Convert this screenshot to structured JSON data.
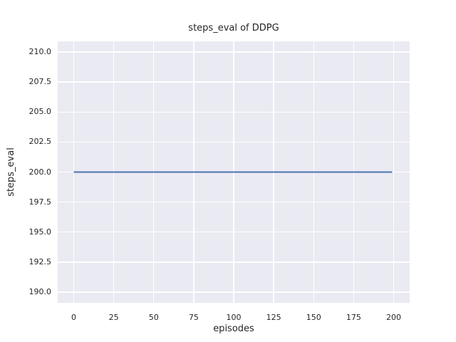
{
  "chart_data": {
    "type": "line",
    "title": "steps_eval of DDPG",
    "xlabel": "episodes",
    "ylabel": "steps_eval",
    "x_ticks": [
      0,
      25,
      50,
      75,
      100,
      125,
      150,
      175,
      200
    ],
    "x_tick_labels": [
      "0",
      "25",
      "50",
      "75",
      "100",
      "125",
      "150",
      "175",
      "200"
    ],
    "y_ticks": [
      190.0,
      192.5,
      195.0,
      197.5,
      200.0,
      202.5,
      205.0,
      207.5,
      210.0
    ],
    "y_tick_labels": [
      "190.0",
      "192.5",
      "195.0",
      "197.5",
      "200.0",
      "202.5",
      "205.0",
      "207.5",
      "210.0"
    ],
    "xlim": [
      -10,
      210
    ],
    "ylim": [
      189.1,
      210.9
    ],
    "grid": true,
    "legend_position": "none",
    "series": [
      {
        "name": "steps_eval",
        "color": "#4c72b0",
        "x": [
          0,
          199
        ],
        "y": [
          200,
          200
        ]
      }
    ],
    "style": {
      "figure_background": "#ffffff",
      "plot_background": "#eaeaf2",
      "grid_color": "#ffffff",
      "text_color": "#262626",
      "line_width": 2
    }
  }
}
